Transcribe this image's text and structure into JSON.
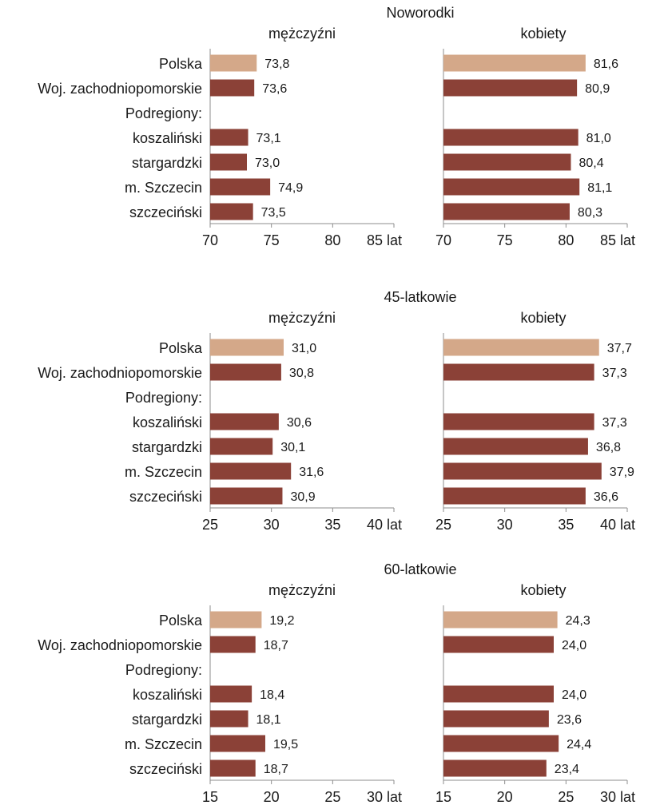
{
  "chart_data": [
    {
      "type": "bar",
      "title": "Noworodki",
      "categories": [
        "Polska",
        "Woj. zachodniopomorskie",
        "Podregiony:",
        "koszaliński",
        "stargardzki",
        "m. Szczecin",
        "szczeciński"
      ],
      "xlim": [
        70,
        85
      ],
      "ticks": [
        "70",
        "75",
        "80",
        "85 lat"
      ],
      "highlight_color": "#d4a889",
      "bar_color": "#8b4137",
      "panels": [
        {
          "name": "mężczyźni",
          "values": [
            73.8,
            73.6,
            null,
            73.1,
            73.0,
            74.9,
            73.5
          ],
          "labels": [
            "73,8",
            "73,6",
            "",
            "73,1",
            "73,0",
            "74,9",
            "73,5"
          ]
        },
        {
          "name": "kobiety",
          "values": [
            81.6,
            80.9,
            null,
            81.0,
            80.4,
            81.1,
            80.3
          ],
          "labels": [
            "81,6",
            "80,9",
            "",
            "81,0",
            "80,4",
            "81,1",
            "80,3"
          ]
        }
      ]
    },
    {
      "type": "bar",
      "title": "45-latkowie",
      "categories": [
        "Polska",
        "Woj. zachodniopomorskie",
        "Podregiony:",
        "koszaliński",
        "stargardzki",
        "m. Szczecin",
        "szczeciński"
      ],
      "xlim": [
        25,
        40
      ],
      "ticks": [
        "25",
        "30",
        "35",
        "40 lat"
      ],
      "highlight_color": "#d4a889",
      "bar_color": "#8b4137",
      "panels": [
        {
          "name": "mężczyźni",
          "values": [
            31.0,
            30.8,
            null,
            30.6,
            30.1,
            31.6,
            30.9
          ],
          "labels": [
            "31,0",
            "30,8",
            "",
            "30,6",
            "30,1",
            "31,6",
            "30,9"
          ]
        },
        {
          "name": "kobiety",
          "values": [
            37.7,
            37.3,
            null,
            37.3,
            36.8,
            37.9,
            36.6
          ],
          "labels": [
            "37,7",
            "37,3",
            "",
            "37,3",
            "36,8",
            "37,9",
            "36,6"
          ]
        }
      ]
    },
    {
      "type": "bar",
      "title": "60-latkowie",
      "categories": [
        "Polska",
        "Woj. zachodniopomorskie",
        "Podregiony:",
        "koszaliński",
        "stargardzki",
        "m. Szczecin",
        "szczeciński"
      ],
      "xlim": [
        15,
        30
      ],
      "ticks": [
        "15",
        "20",
        "25",
        "30 lat"
      ],
      "highlight_color": "#d4a889",
      "bar_color": "#8b4137",
      "panels": [
        {
          "name": "mężczyźni",
          "values": [
            19.2,
            18.7,
            null,
            18.4,
            18.1,
            19.5,
            18.7
          ],
          "labels": [
            "19,2",
            "18,7",
            "",
            "18,4",
            "18,1",
            "19,5",
            "18,7"
          ]
        },
        {
          "name": "kobiety",
          "values": [
            24.3,
            24.0,
            null,
            24.0,
            23.6,
            24.4,
            23.4
          ],
          "labels": [
            "24,3",
            "24,0",
            "",
            "24,0",
            "23,6",
            "24,4",
            "23,4"
          ]
        }
      ]
    }
  ]
}
